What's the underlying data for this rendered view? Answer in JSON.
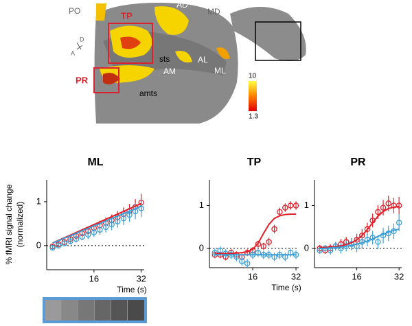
{
  "brain": {
    "labels": [
      "PO",
      "TP",
      "AD",
      "MD",
      "sts",
      "AL",
      "ML",
      "AM",
      "PR",
      "amts",
      "D",
      "A"
    ],
    "colorbar_ticks": [
      10,
      1.3
    ]
  },
  "y_axis_title": [
    "% fMRI signal change",
    "(normalized)"
  ],
  "chart_data": [
    {
      "type": "line",
      "title": "ML",
      "x_label": "Time (s)",
      "x": [
        2,
        4,
        6,
        8,
        10,
        12,
        14,
        16,
        18,
        20,
        22,
        24,
        26,
        28,
        30,
        32
      ],
      "xlim": [
        0,
        33
      ],
      "xticks": [
        16,
        32
      ],
      "ylim": [
        -0.55,
        1.5
      ],
      "yticks": [
        0,
        1
      ],
      "zero_line": true,
      "series": [
        {
          "color": "#e0202a",
          "style": "points",
          "values": [
            -0.02,
            0.03,
            0.08,
            0.15,
            0.22,
            0.28,
            0.33,
            0.4,
            0.46,
            0.52,
            0.58,
            0.65,
            0.72,
            0.79,
            0.88,
            0.98
          ],
          "errors": [
            0.05,
            0.05,
            0.06,
            0.07,
            0.08,
            0.08,
            0.1,
            0.1,
            0.11,
            0.12,
            0.13,
            0.14,
            0.15,
            0.16,
            0.18,
            0.2
          ]
        },
        {
          "color": "#3a9fd6",
          "style": "points",
          "values": [
            -0.05,
            0,
            0.05,
            0.1,
            0.15,
            0.2,
            0.25,
            0.3,
            0.36,
            0.42,
            0.48,
            0.55,
            0.62,
            0.7,
            0.78,
            0.85
          ],
          "errors": [
            0.05,
            0.05,
            0.06,
            0.07,
            0.08,
            0.08,
            0.1,
            0.1,
            0.11,
            0.12,
            0.13,
            0.14,
            0.15,
            0.16,
            0.18,
            0.2
          ]
        },
        {
          "color": "#e0202a",
          "style": "line",
          "values": [
            0.06,
            0.12,
            0.18,
            0.24,
            0.3,
            0.36,
            0.42,
            0.48,
            0.54,
            0.6,
            0.66,
            0.72,
            0.78,
            0.84,
            0.9,
            0.96
          ]
        },
        {
          "color": "#3a9fd6",
          "style": "line",
          "values": [
            0.06,
            0.11,
            0.17,
            0.22,
            0.28,
            0.34,
            0.39,
            0.45,
            0.5,
            0.56,
            0.62,
            0.67,
            0.73,
            0.78,
            0.84,
            0.9
          ]
        }
      ]
    },
    {
      "type": "line",
      "title": "TP",
      "x_label": "Time (s)",
      "x": [
        2,
        4,
        6,
        8,
        10,
        12,
        14,
        16,
        18,
        20,
        22,
        24,
        26,
        28,
        30,
        32
      ],
      "xlim": [
        0,
        33
      ],
      "xticks": [
        16,
        32
      ],
      "ylim": [
        -0.45,
        1.6
      ],
      "yticks": [
        0,
        1
      ],
      "zero_line": true,
      "series": [
        {
          "color": "#e0202a",
          "style": "points",
          "values": [
            -0.15,
            -0.15,
            -0.2,
            -0.1,
            -0.15,
            -0.2,
            -0.1,
            -0.05,
            0.1,
            0.05,
            0.15,
            0.45,
            0.85,
            0.95,
            1.0,
            1.0
          ],
          "errors": [
            0.08,
            0.08,
            0.08,
            0.08,
            0.08,
            0.08,
            0.08,
            0.08,
            0.08,
            0.08,
            0.1,
            0.1,
            0.1,
            0.1,
            0.1,
            0.1
          ]
        },
        {
          "color": "#3a9fd6",
          "style": "points",
          "values": [
            -0.1,
            -0.05,
            -0.12,
            -0.15,
            -0.2,
            -0.3,
            -0.35,
            -0.15,
            -0.1,
            -0.15,
            -0.15,
            -0.2,
            -0.15,
            -0.2,
            -0.1,
            -0.15
          ],
          "errors": [
            0.1,
            0.1,
            0.1,
            0.1,
            0.1,
            0.1,
            0.1,
            0.1,
            0.1,
            0.1,
            0.1,
            0.1,
            0.1,
            0.1,
            0.1,
            0.1
          ]
        },
        {
          "color": "#e0202a",
          "style": "line",
          "values": [
            -0.12,
            -0.12,
            -0.12,
            -0.12,
            -0.11,
            -0.1,
            -0.08,
            -0.02,
            0.12,
            0.35,
            0.56,
            0.7,
            0.76,
            0.79,
            0.8,
            0.8
          ]
        },
        {
          "color": "#3a9fd6",
          "style": "line",
          "values": [
            -0.15,
            -0.15,
            -0.15,
            -0.15,
            -0.15,
            -0.15,
            -0.15,
            -0.15,
            -0.15,
            -0.15,
            -0.15,
            -0.15,
            -0.15,
            -0.15,
            -0.15,
            -0.15
          ]
        }
      ]
    },
    {
      "type": "line",
      "title": "PR",
      "x": [
        2,
        4,
        6,
        8,
        10,
        12,
        14,
        16,
        18,
        20,
        22,
        24,
        26,
        28,
        30,
        32
      ],
      "xlim": [
        0,
        33
      ],
      "xticks": [
        16,
        32
      ],
      "ylim": [
        -0.45,
        1.6
      ],
      "yticks": [
        0,
        1
      ],
      "zero_line": true,
      "series": [
        {
          "color": "#e0202a",
          "style": "points",
          "values": [
            0,
            -0.05,
            0,
            0.05,
            0.1,
            0.15,
            0.1,
            0.2,
            0.3,
            0.45,
            0.65,
            0.85,
            0.95,
            1.05,
            1.0,
            1.0
          ],
          "errors": [
            0.08,
            0.08,
            0.1,
            0.1,
            0.12,
            0.12,
            0.14,
            0.14,
            0.15,
            0.15,
            0.16,
            0.16,
            0.18,
            0.18,
            0.18,
            0.2
          ]
        },
        {
          "color": "#3a9fd6",
          "style": "points",
          "values": [
            -0.05,
            0,
            -0.05,
            0.05,
            0,
            0.05,
            0.1,
            0.05,
            0.15,
            0.2,
            0.25,
            0.15,
            0.3,
            0.35,
            0.4,
            0.6
          ],
          "errors": [
            0.08,
            0.08,
            0.1,
            0.1,
            0.12,
            0.12,
            0.14,
            0.14,
            0.15,
            0.15,
            0.16,
            0.16,
            0.18,
            0.18,
            0.18,
            0.2
          ]
        },
        {
          "color": "#e0202a",
          "style": "line",
          "values": [
            0.02,
            0.02,
            0.03,
            0.04,
            0.06,
            0.09,
            0.13,
            0.2,
            0.3,
            0.44,
            0.6,
            0.75,
            0.86,
            0.93,
            0.96,
            0.98
          ]
        },
        {
          "color": "#3a9fd6",
          "style": "line",
          "values": [
            0,
            0,
            0.01,
            0.02,
            0.03,
            0.05,
            0.07,
            0.1,
            0.13,
            0.17,
            0.22,
            0.28,
            0.33,
            0.38,
            0.42,
            0.45
          ]
        }
      ]
    }
  ]
}
